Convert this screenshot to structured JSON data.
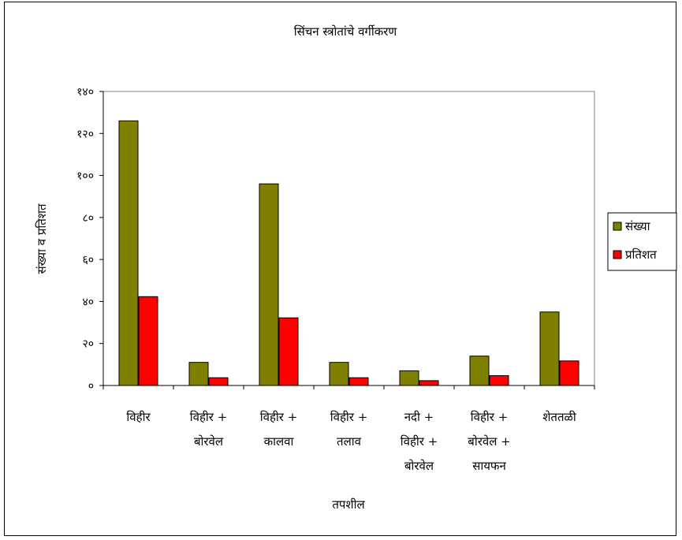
{
  "chart_data": {
    "type": "bar",
    "title": "सिंचन स्त्रोतांचे वर्गीकरण",
    "xlabel": "तपशील",
    "ylabel": "संख्या व प्रतिशत",
    "ylim": [
      0,
      140
    ],
    "yticks": [
      0,
      20,
      40,
      60,
      80,
      100,
      120,
      140
    ],
    "ytick_labels": [
      "०",
      "२०",
      "४०",
      "६०",
      "८०",
      "१००",
      "१२०",
      "१४०"
    ],
    "categories": [
      [
        "विहीर"
      ],
      [
        "विहीर +",
        "बोरवेल"
      ],
      [
        "विहीर +",
        "कालवा"
      ],
      [
        "विहीर +",
        "तलाव"
      ],
      [
        "नदी +",
        "विहीर +",
        "बोरवेल"
      ],
      [
        "विहीर +",
        "बोरवेल +",
        "सायफन"
      ],
      [
        "शेततळी"
      ]
    ],
    "series": [
      {
        "name": "संख्या",
        "color": "#808000",
        "values": [
          126,
          11,
          96,
          11,
          7,
          14,
          35
        ]
      },
      {
        "name": "प्रतिशत",
        "color": "#ff0000",
        "values": [
          42.3,
          3.7,
          32.2,
          3.7,
          2.3,
          4.7,
          11.7
        ]
      }
    ],
    "grid": false,
    "legend_position": "right"
  }
}
